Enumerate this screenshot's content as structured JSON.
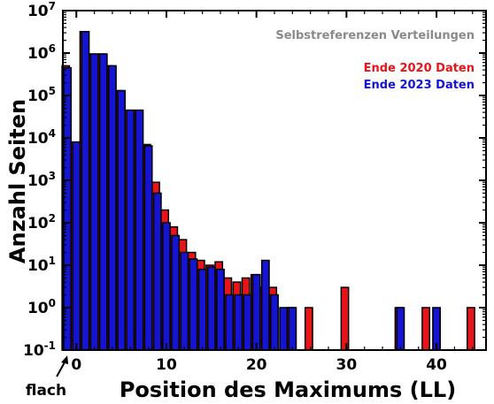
{
  "chart_data": {
    "type": "bar",
    "title": "Selbstreferenzen Verteilungen",
    "xlabel": "Position des Maximums (LL)",
    "ylabel": "Anzahl Seiten",
    "yscale": "log",
    "ylim": [
      0.1,
      10000000
    ],
    "xlim": [
      -1.5,
      45.5
    ],
    "x_ticks": [
      0,
      10,
      20,
      30,
      40
    ],
    "y_ticks": [
      {
        "base": "10",
        "exp": "-1",
        "value": 0.1
      },
      {
        "base": "10",
        "exp": "0",
        "value": 1
      },
      {
        "base": "10",
        "exp": "1",
        "value": 10
      },
      {
        "base": "10",
        "exp": "2",
        "value": 100
      },
      {
        "base": "10",
        "exp": "3",
        "value": 1000
      },
      {
        "base": "10",
        "exp": "4",
        "value": 10000
      },
      {
        "base": "10",
        "exp": "5",
        "value": 100000
      },
      {
        "base": "10",
        "exp": "6",
        "value": 1000000
      },
      {
        "base": "10",
        "exp": "7",
        "value": 10000000
      }
    ],
    "annotation": "flach",
    "annotation_target_x": -1,
    "legend_position": "top-right",
    "series": [
      {
        "name": "Ende 2020 Daten",
        "color": "#e8141a",
        "x": [
          -1,
          0,
          1,
          2,
          3,
          4,
          5,
          6,
          7,
          8,
          9,
          10,
          11,
          12,
          13,
          14,
          15,
          16,
          17,
          18,
          19,
          20,
          21,
          22,
          24,
          26,
          30,
          36,
          39,
          44
        ],
        "values": [
          500000,
          8000,
          3200000,
          950000,
          950000,
          500000,
          130000,
          45000,
          45000,
          7000,
          900,
          200,
          80,
          40,
          20,
          13,
          10,
          12,
          5,
          4,
          5,
          6,
          3,
          3,
          1,
          1,
          3,
          1,
          1,
          1
        ]
      },
      {
        "name": "Ende 2023 Daten",
        "color": "#1414d2",
        "x": [
          -1,
          0,
          1,
          2,
          3,
          4,
          5,
          6,
          7,
          8,
          9,
          10,
          11,
          12,
          13,
          14,
          15,
          16,
          17,
          18,
          19,
          20,
          21,
          22,
          23,
          24,
          36,
          40
        ],
        "values": [
          450000,
          8000,
          3200000,
          950000,
          950000,
          500000,
          130000,
          45000,
          45000,
          6500,
          500,
          100,
          50,
          20,
          14,
          8,
          9,
          8,
          2,
          2,
          2,
          6,
          13,
          2,
          1,
          1,
          1,
          1
        ]
      }
    ]
  }
}
